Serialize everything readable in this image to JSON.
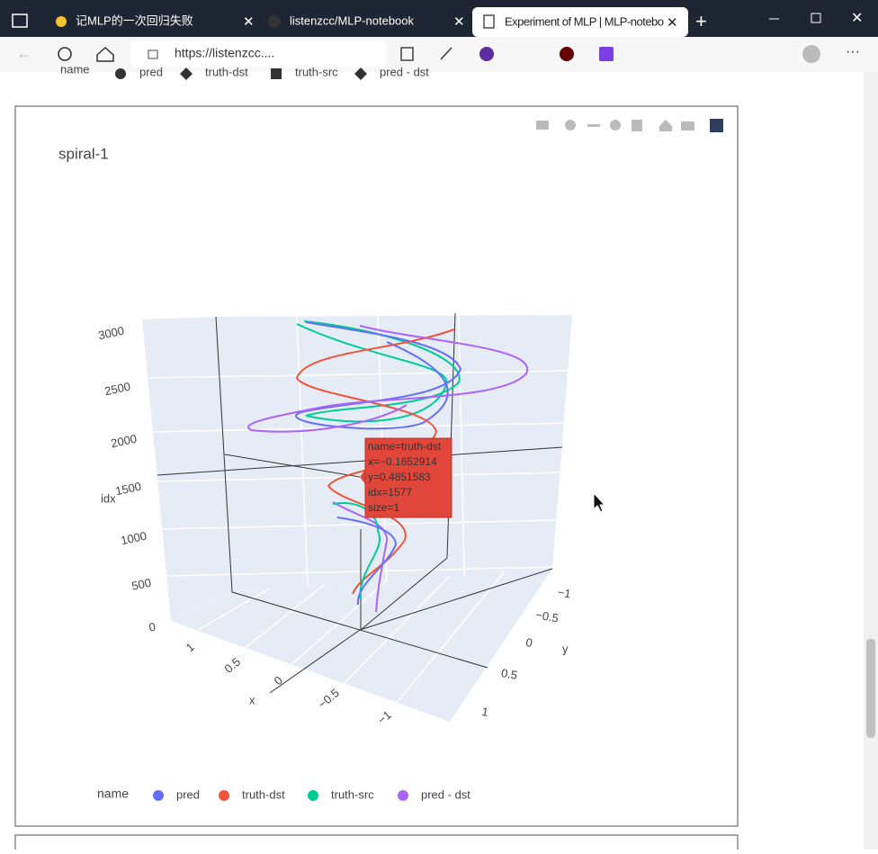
{
  "browser": {
    "tabs": [
      "记MLP的一次回归失败",
      "listenzcc/MLP-notebook",
      "Experiment of MLP | MLP-notebo"
    ],
    "url": "https://listenzcc...."
  },
  "top_legend": {
    "title": "name",
    "items": [
      "pred",
      "truth-dst",
      "truth-src",
      "pred - dst"
    ]
  },
  "plot": {
    "title": "spiral-1",
    "z_axis": {
      "title": "idx",
      "ticks": [
        "0",
        "500",
        "1000",
        "1500",
        "2000",
        "2500",
        "3000"
      ]
    },
    "x_axis": {
      "title": "x",
      "ticks": [
        "1",
        "0.5",
        "0",
        "−0.5",
        "−1"
      ]
    },
    "y_axis": {
      "title": "y",
      "ticks": [
        "−1",
        "−0.5",
        "0",
        "0.5",
        "1"
      ]
    },
    "tooltip": [
      "name=truth-dst",
      "x=−0.1652914",
      "y=0.4851583",
      "idx=1577",
      "size=1"
    ],
    "legend": {
      "title": "name",
      "items": [
        {
          "name": "pred",
          "color": "#636efa"
        },
        {
          "name": "truth-dst",
          "color": "#ef553b"
        },
        {
          "name": "truth-src",
          "color": "#00cc96"
        },
        {
          "name": "pred - dst",
          "color": "#ab63fa"
        }
      ]
    }
  }
}
